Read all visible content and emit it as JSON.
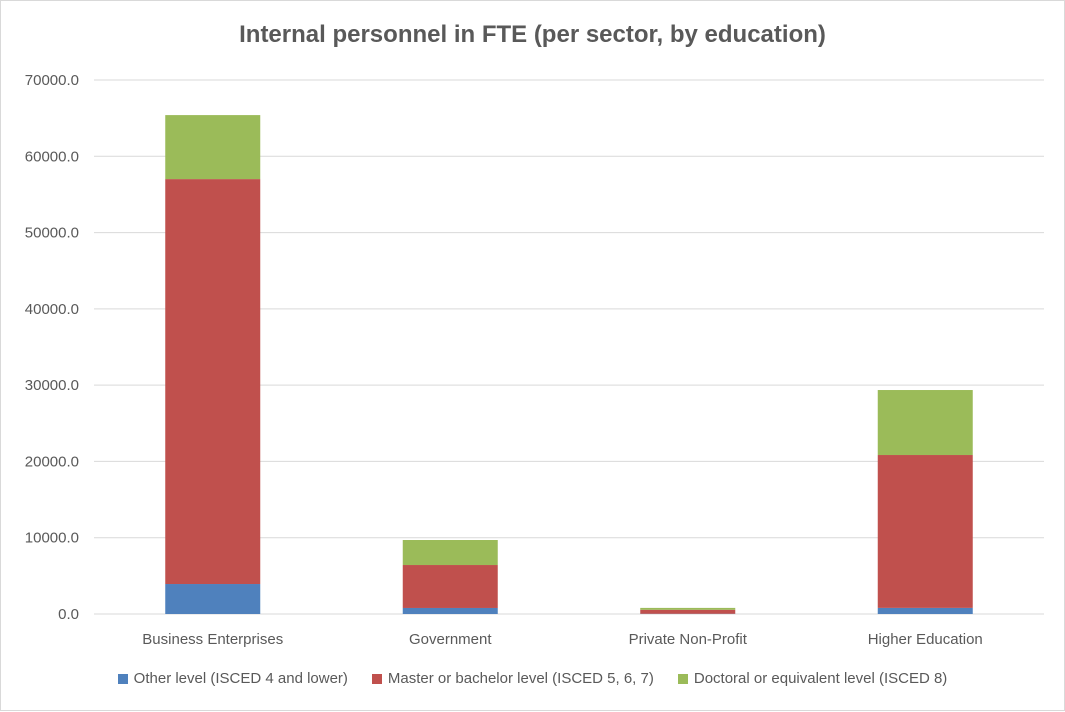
{
  "chart_data": {
    "type": "bar",
    "stacked": true,
    "title": "Internal personnel in FTE (per sector, by education)",
    "categories": [
      "Business Enterprises",
      "Government",
      "Private Non-Profit",
      "Higher Education"
    ],
    "series": [
      {
        "name": "Other level (ISCED 4 and lower)",
        "color": "#4f81bd",
        "values": [
          3930,
          790,
          30,
          800
        ]
      },
      {
        "name": "Master or bachelor level (ISCED 5, 6, 7)",
        "color": "#c0504d",
        "values": [
          53080,
          5630,
          520,
          20040
        ]
      },
      {
        "name": "Doctoral or equivalent level (ISCED 8)",
        "color": "#9bbb59",
        "values": [
          8390,
          3280,
          250,
          8520
        ]
      }
    ],
    "ylim": [
      0,
      70000
    ],
    "yticks": [
      "0.0",
      "10000.0",
      "20000.0",
      "30000.0",
      "40000.0",
      "50000.0",
      "60000.0",
      "70000.0"
    ],
    "grid": true,
    "legend": "bottom"
  }
}
